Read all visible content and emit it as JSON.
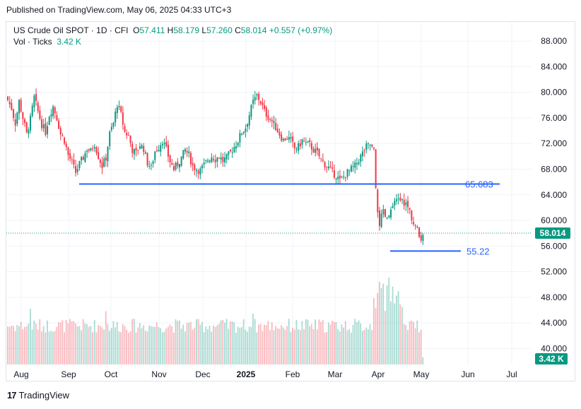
{
  "header": {
    "published": "Published on TradingView.com, May 06, 2025 04:33 UTC+3"
  },
  "legend": {
    "symbol": "US Crude Oil SPOT · 1D · CFI",
    "open_label": "O",
    "open": "57.411",
    "high_label": "H",
    "high": "58.179",
    "low_label": "L",
    "low": "57.260",
    "close_label": "C",
    "close": "58.014",
    "change": "+0.557 (+0.97%)",
    "vol_label": "Vol · Ticks",
    "vol_value": "3.42 K"
  },
  "footer": {
    "brand": "TradingView"
  },
  "colors": {
    "up": "#089981",
    "down": "#f23645",
    "line": "#2962ff",
    "price_tag": "#089981"
  },
  "chart_data": {
    "type": "candlestick",
    "title": "US Crude Oil SPOT · 1D · CFI",
    "x_ticks": [
      "Aug",
      "Sep",
      "Oct",
      "Nov",
      "Dec",
      "2025",
      "Feb",
      "Mar",
      "Apr",
      "May",
      "Jun",
      "Jul"
    ],
    "y_ticks": [
      "88.000",
      "84.000",
      "80.000",
      "76.000",
      "72.000",
      "68.000",
      "64.000",
      "60.000",
      "56.000",
      "52.000",
      "48.000",
      "44.000",
      "40.000"
    ],
    "ylim": [
      37.5,
      91.0
    ],
    "last_price_label": "58.014",
    "last_price": 58.014,
    "volume_label": "3.42 K",
    "horizontal_lines": [
      {
        "name": "resistance",
        "value": 65.683,
        "label": "65.683"
      },
      {
        "name": "support",
        "value": 55.22,
        "label": "55.22"
      }
    ],
    "close_path": [
      [
        0,
        78.8
      ],
      [
        2,
        77.5
      ],
      [
        4,
        75.2
      ],
      [
        6,
        78.6
      ],
      [
        8,
        76.0
      ],
      [
        10,
        73.5
      ],
      [
        12,
        75.8
      ],
      [
        14,
        79.2
      ],
      [
        16,
        77.0
      ],
      [
        18,
        75.0
      ],
      [
        20,
        73.8
      ],
      [
        22,
        76.5
      ],
      [
        24,
        77.8
      ],
      [
        26,
        76.0
      ],
      [
        28,
        73.5
      ],
      [
        30,
        72.5
      ],
      [
        32,
        70.2
      ],
      [
        34,
        69.0
      ],
      [
        36,
        67.5
      ],
      [
        38,
        68.8
      ],
      [
        40,
        69.8
      ],
      [
        42,
        71.2
      ],
      [
        44,
        70.8
      ],
      [
        46,
        72.0
      ],
      [
        48,
        70.0
      ],
      [
        50,
        68.5
      ],
      [
        52,
        69.8
      ],
      [
        54,
        73.5
      ],
      [
        56,
        75.2
      ],
      [
        58,
        78.2
      ],
      [
        60,
        76.5
      ],
      [
        62,
        73.8
      ],
      [
        64,
        73.2
      ],
      [
        66,
        71.0
      ],
      [
        68,
        70.5
      ],
      [
        70,
        71.8
      ],
      [
        72,
        71.2
      ],
      [
        74,
        69.0
      ],
      [
        76,
        68.2
      ],
      [
        78,
        70.8
      ],
      [
        80,
        71.5
      ],
      [
        82,
        72.5
      ],
      [
        84,
        71.0
      ],
      [
        86,
        69.2
      ],
      [
        88,
        68.0
      ],
      [
        90,
        68.8
      ],
      [
        92,
        69.8
      ],
      [
        94,
        71.0
      ],
      [
        96,
        70.2
      ],
      [
        98,
        68.5
      ],
      [
        100,
        68.0
      ],
      [
        102,
        67.8
      ],
      [
        104,
        68.6
      ],
      [
        106,
        69.5
      ],
      [
        108,
        70.0
      ],
      [
        110,
        69.6
      ],
      [
        112,
        70.0
      ],
      [
        114,
        69.3
      ],
      [
        116,
        69.8
      ],
      [
        118,
        70.6
      ],
      [
        120,
        71.5
      ],
      [
        122,
        72.5
      ],
      [
        124,
        73.8
      ],
      [
        126,
        74.5
      ],
      [
        128,
        76.5
      ],
      [
        130,
        78.5
      ],
      [
        132,
        79.5
      ],
      [
        134,
        78.5
      ],
      [
        136,
        77.0
      ],
      [
        138,
        76.2
      ],
      [
        140,
        75.5
      ],
      [
        142,
        74.5
      ],
      [
        144,
        73.5
      ],
      [
        146,
        72.5
      ],
      [
        148,
        73.0
      ],
      [
        150,
        72.5
      ],
      [
        152,
        71.2
      ],
      [
        154,
        71.5
      ],
      [
        156,
        72.5
      ],
      [
        158,
        72.0
      ],
      [
        160,
        71.8
      ],
      [
        162,
        71.0
      ],
      [
        164,
        70.5
      ],
      [
        166,
        69.5
      ],
      [
        168,
        68.8
      ],
      [
        170,
        68.2
      ],
      [
        172,
        67.5
      ],
      [
        174,
        67.0
      ],
      [
        176,
        66.2
      ],
      [
        178,
        66.8
      ],
      [
        180,
        67.5
      ],
      [
        182,
        68.0
      ],
      [
        184,
        68.5
      ],
      [
        186,
        69.5
      ],
      [
        188,
        70.5
      ],
      [
        190,
        71.5
      ],
      [
        192,
        71.8
      ],
      [
        194,
        70.8
      ],
      [
        195,
        64.5
      ],
      [
        196,
        61.5
      ],
      [
        197,
        59.5
      ],
      [
        198,
        60.5
      ],
      [
        199,
        61.2
      ],
      [
        201,
        60.0
      ],
      [
        203,
        61.5
      ],
      [
        205,
        62.5
      ],
      [
        207,
        63.5
      ],
      [
        209,
        63.0
      ],
      [
        211,
        62.5
      ],
      [
        213,
        61.5
      ],
      [
        215,
        59.5
      ],
      [
        217,
        58.5
      ],
      [
        218,
        57.5
      ],
      [
        219,
        57.411
      ],
      [
        220,
        58.014
      ]
    ],
    "n_bars": 221
  }
}
